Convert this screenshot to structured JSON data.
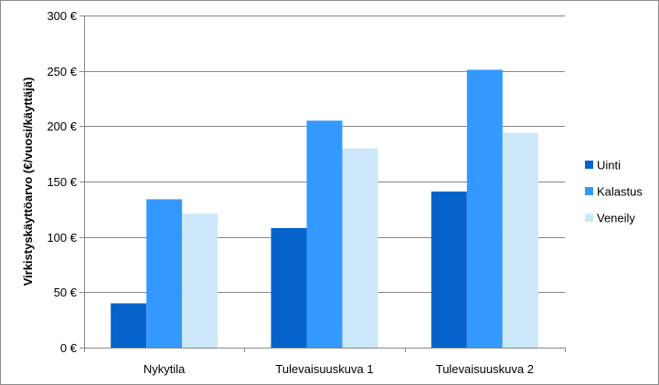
{
  "chart_data": {
    "type": "bar",
    "title": "",
    "xlabel": "",
    "ylabel": "Virkistyskäyttöarvo (€/vuosi/käyttäjä)",
    "categories": [
      "Nykytila",
      "Tulevaisuuskuva 1",
      "Tulevaisuuskuva 2"
    ],
    "series": [
      {
        "name": "Uinti",
        "values": [
          40,
          108,
          141
        ],
        "color": "#0563c9"
      },
      {
        "name": "Kalastus",
        "values": [
          134,
          205,
          251
        ],
        "color": "#3399ff"
      },
      {
        "name": "Veneily",
        "values": [
          121,
          180,
          194
        ],
        "color": "#cce8fa"
      }
    ],
    "ylim": [
      0,
      300
    ],
    "yticks": [
      0,
      50,
      100,
      150,
      200,
      250,
      300
    ],
    "ytick_labels": [
      "0 €",
      "50 €",
      "100 €",
      "150 €",
      "200 €",
      "250 €",
      "300 €"
    ],
    "grid": true,
    "legend_position": "right"
  }
}
